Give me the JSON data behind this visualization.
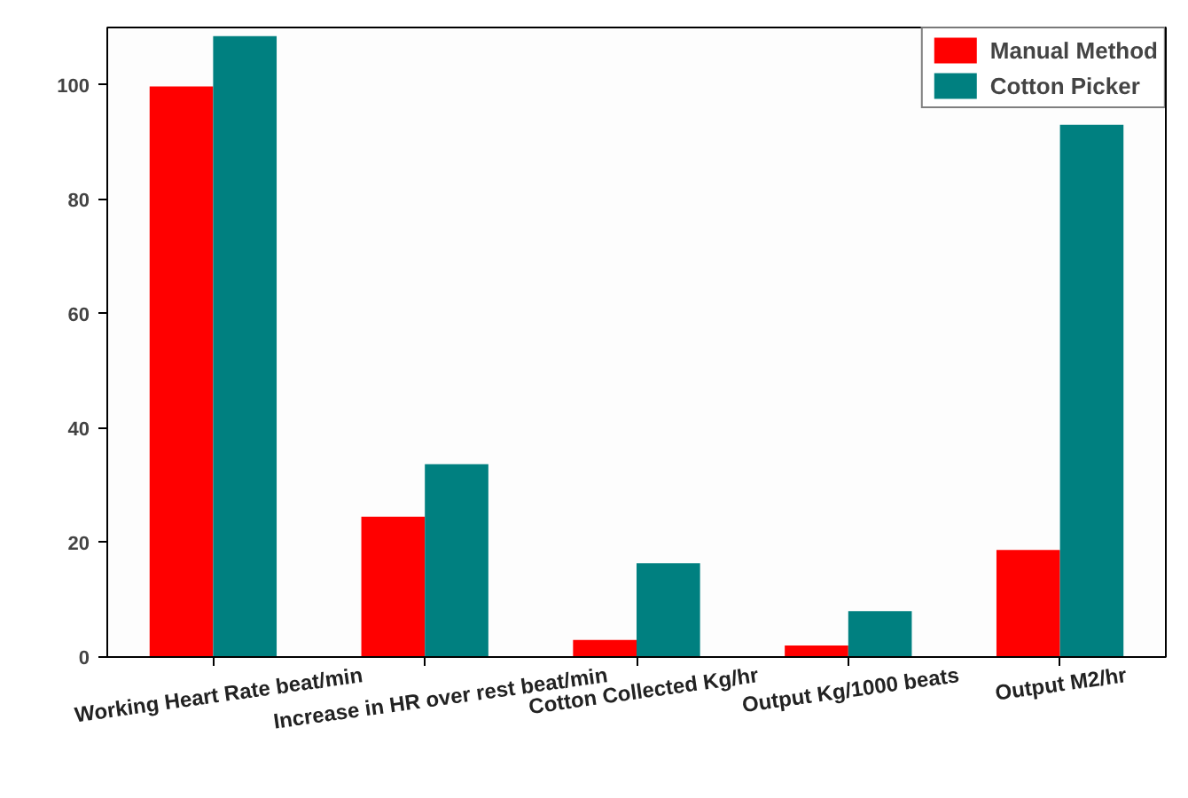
{
  "chart_data": {
    "type": "bar",
    "categories": [
      "Working Heart Rate beat/min",
      "Increase in HR over rest beat/min",
      "Cotton Collected Kg/hr",
      "Output Kg/1000 beats",
      "Output M2/hr"
    ],
    "series": [
      {
        "name": "Manual Method",
        "color": "#ff0000",
        "values": [
          99.7,
          24.5,
          3,
          2,
          18.7
        ]
      },
      {
        "name": "Cotton Picker",
        "color": "#008080",
        "values": [
          108.5,
          33.7,
          16.4,
          8,
          93
        ]
      }
    ],
    "ylim": [
      0,
      110
    ],
    "yticks": [
      0,
      20,
      40,
      60,
      80,
      100
    ],
    "grid": false,
    "legend": "top right"
  }
}
